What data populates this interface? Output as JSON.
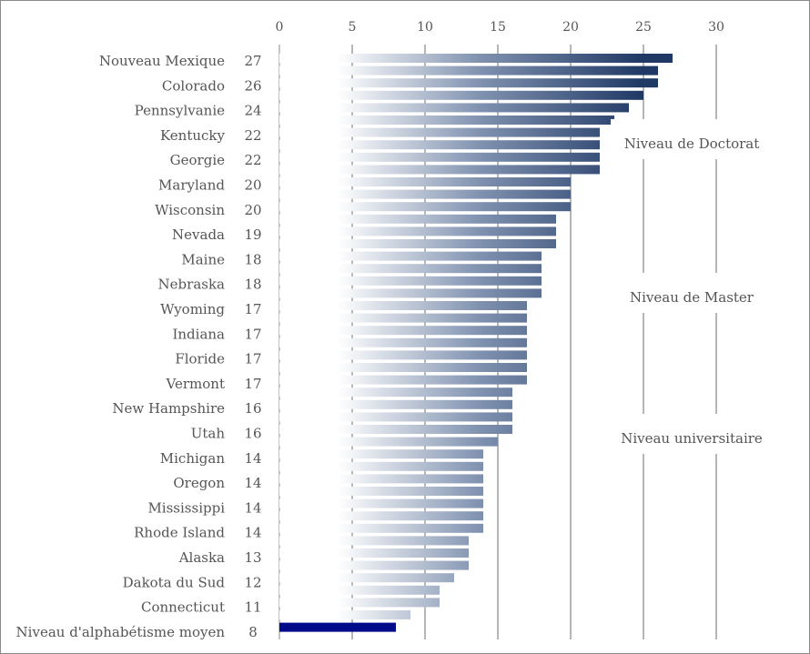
{
  "chart_data": {
    "type": "bar",
    "orientation": "horizontal",
    "title": "",
    "xlim": [
      0,
      30
    ],
    "xticks": [
      0,
      5,
      10,
      15,
      20,
      25,
      30
    ],
    "grid": true,
    "categories": [
      {
        "label": "Nouveau Mexique",
        "value": 27
      },
      {
        "label": "Colorado",
        "value": 26
      },
      {
        "label": "Pennsylvanie",
        "value": 24
      },
      {
        "label": "Kentucky",
        "value": 22
      },
      {
        "label": "Georgie",
        "value": 22
      },
      {
        "label": "Maryland",
        "value": 20
      },
      {
        "label": "Wisconsin",
        "value": 20
      },
      {
        "label": "Nevada",
        "value": 19
      },
      {
        "label": "Maine",
        "value": 18
      },
      {
        "label": "Nebraska",
        "value": 18
      },
      {
        "label": "Wyoming",
        "value": 17
      },
      {
        "label": "Indiana",
        "value": 17
      },
      {
        "label": "Floride",
        "value": 17
      },
      {
        "label": "Vermont",
        "value": 17
      },
      {
        "label": "New Hampshire",
        "value": 16
      },
      {
        "label": "Utah",
        "value": 16
      },
      {
        "label": "Michigan",
        "value": 14
      },
      {
        "label": "Oregon",
        "value": 14
      },
      {
        "label": "Mississippi",
        "value": 14
      },
      {
        "label": "Rhode Island",
        "value": 14
      },
      {
        "label": "Alaska",
        "value": 13
      },
      {
        "label": "Dakota du Sud",
        "value": 12
      },
      {
        "label": "Connecticut",
        "value": 11
      },
      {
        "label": "Niveau d'alphabétisme moyen",
        "value": 8
      }
    ],
    "bars": [
      27,
      26,
      26,
      25,
      24,
      23,
      22,
      22,
      22,
      22,
      20,
      20,
      20,
      19,
      19,
      19,
      18,
      18,
      18,
      18,
      17,
      17,
      17,
      17,
      17,
      17,
      17,
      16,
      16,
      16,
      16,
      15,
      14,
      14,
      14,
      14,
      14,
      14,
      14,
      13,
      13,
      13,
      12,
      11,
      11,
      9,
      8
    ],
    "highlight_bar_index": 46,
    "annotations": [
      {
        "text": "Niveau de Doctorat",
        "x": 25
      },
      {
        "text": "Niveau de Master",
        "x": 25
      },
      {
        "text": "Niveau universitaire",
        "x": 25
      }
    ],
    "colors": {
      "bar_dark": "#1f3864",
      "bar_light": "#ffffff",
      "highlight": "#000b8c",
      "grid": "#6e6e6e",
      "text": "#555555"
    }
  }
}
